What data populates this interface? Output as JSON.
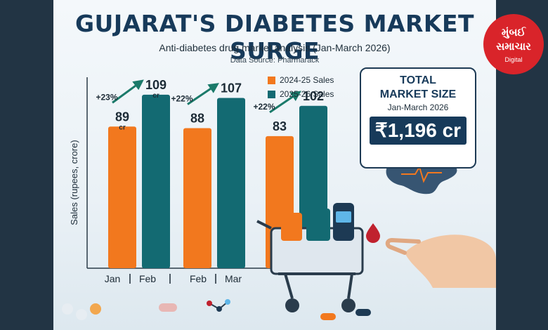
{
  "header": {
    "title": "GUJARAT'S DIABETES MARKET SURGE",
    "subtitle": "Anti-diabetes drug market analysis (Jan-March 2026)",
    "source": "Data Source: Pharmarack"
  },
  "colors": {
    "orange": "#f2781e",
    "teal": "#136a72",
    "navy": "#173a5a",
    "accent_green": "#1b7a6a"
  },
  "chart_data": {
    "type": "bar",
    "categories": [
      "Jan | Feb",
      "Feb | Mar",
      ""
    ],
    "category_labels": [
      "Jan",
      "Feb",
      "Feb",
      "Mar"
    ],
    "series": [
      {
        "name": "2024-25 Sales",
        "values": [
          89,
          88,
          83
        ],
        "labels": [
          "89",
          "88",
          "83"
        ],
        "color": "#f2781e"
      },
      {
        "name": "2025-26 Sales",
        "values": [
          109,
          107,
          102
        ],
        "labels": [
          "109",
          "107",
          "102"
        ],
        "color": "#136a72"
      }
    ],
    "growth": [
      "+23%",
      "+22%",
      "+22%"
    ],
    "unit_label": "cr",
    "ylabel": "Sales (rupees, crore)",
    "ylim": [
      0,
      120
    ],
    "legend": "top-right",
    "grid": false
  },
  "total": {
    "line1": "TOTAL",
    "line2": "MARKET SIZE",
    "period": "Jan-March 2026",
    "value": "₹1,196 cr"
  },
  "logo": {
    "line1": "મુંબઈ",
    "line2": "સમાચાર",
    "line3": "Digital"
  }
}
